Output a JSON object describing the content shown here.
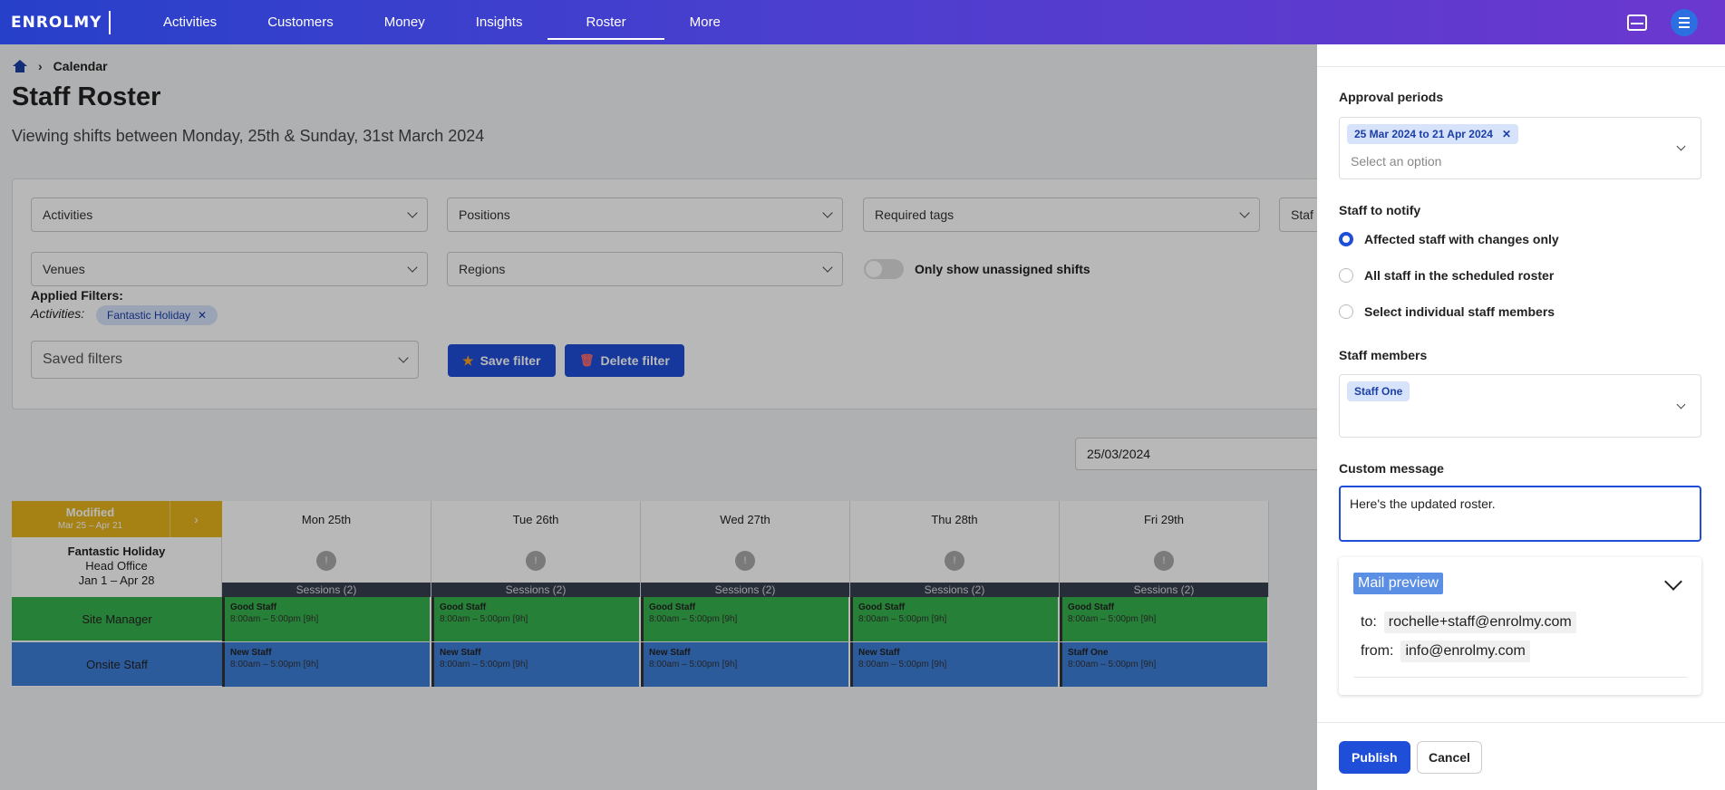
{
  "nav": {
    "logo": "ENROLMY",
    "items": [
      "Activities",
      "Customers",
      "Money",
      "Insights",
      "Roster",
      "More"
    ],
    "active": "Roster"
  },
  "breadcrumb": {
    "current": "Calendar"
  },
  "page": {
    "title": "Staff Roster",
    "subtitle": "Viewing shifts between Monday, 25th & Sunday, 31st March 2024"
  },
  "filters": {
    "activities": "Activities",
    "positions": "Positions",
    "required_tags": "Required tags",
    "staff_truncated": "Staf",
    "venues": "Venues",
    "regions": "Regions",
    "unassigned_toggle": "Only show unassigned shifts",
    "applied_title": "Applied Filters:",
    "applied_key": "Activities:",
    "applied_chip": "Fantastic Holiday",
    "saved_filters": "Saved filters",
    "save_label": "Save filter",
    "delete_label": "Delete filter"
  },
  "date_value": "25/03/2024",
  "roster": {
    "modified_title": "Modified",
    "modified_range": "Mar 25 – Apr 21",
    "days": [
      "Mon 25th",
      "Tue 26th",
      "Wed 27th",
      "Thu 28th",
      "Fri 29th"
    ],
    "activity": {
      "name": "Fantastic Holiday",
      "venue": "Head Office",
      "dates": "Jan 1 – Apr 28"
    },
    "sessions_label": "Sessions (2)",
    "info_icon": "!",
    "rows": [
      {
        "role": "Site Manager",
        "shifts": [
          {
            "name": "Good Staff",
            "time": "8:00am – 5:00pm [9h]"
          },
          {
            "name": "Good Staff",
            "time": "8:00am – 5:00pm [9h]"
          },
          {
            "name": "Good Staff",
            "time": "8:00am – 5:00pm [9h]"
          },
          {
            "name": "Good Staff",
            "time": "8:00am – 5:00pm [9h]"
          },
          {
            "name": "Good Staff",
            "time": "8:00am – 5:00pm [9h]"
          }
        ]
      },
      {
        "role": "Onsite Staff",
        "shifts": [
          {
            "name": "New Staff",
            "time": "8:00am – 5:00pm [9h]"
          },
          {
            "name": "New Staff",
            "time": "8:00am – 5:00pm [9h]"
          },
          {
            "name": "New Staff",
            "time": "8:00am – 5:00pm [9h]"
          },
          {
            "name": "New Staff",
            "time": "8:00am – 5:00pm [9h]"
          },
          {
            "name": "Staff One",
            "time": "8:00am – 5:00pm [9h]"
          }
        ]
      }
    ]
  },
  "panel": {
    "approval_label": "Approval periods",
    "approval_chip": "25 Mar 2024 to 21 Apr 2024",
    "approval_placeholder": "Select an option",
    "notify_label": "Staff to notify",
    "notify_options": [
      "Affected staff with changes only",
      "All staff in the scheduled roster",
      "Select individual staff members"
    ],
    "notify_selected": 0,
    "staff_members_label": "Staff members",
    "staff_chip": "Staff One",
    "custom_message_label": "Custom message",
    "custom_message": "Here's the updated roster.",
    "mail_preview_label": "Mail preview",
    "mail_to_key": "to:",
    "mail_to": "rochelle+staff@enrolmy.com",
    "mail_from_key": "from:",
    "mail_from": "info@enrolmy.com",
    "publish_label": "Publish",
    "cancel_label": "Cancel"
  },
  "colors": {
    "nav_start": "#2740c9",
    "nav_end": "#6b37cf",
    "primary": "#1f4ed8",
    "modified": "#e7b31c",
    "site_manager": "#37b24d",
    "onsite_staff": "#3d7fd9"
  }
}
